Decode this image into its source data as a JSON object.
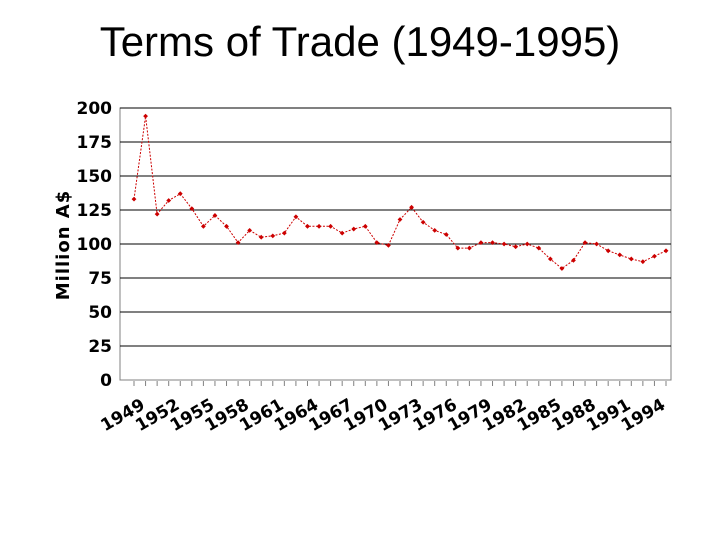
{
  "slide": {
    "title": "Terms of Trade (1949-1995)"
  },
  "chart_data": {
    "type": "line",
    "title": "Terms of Trade (1949-1995)",
    "xlabel": "",
    "ylabel": "Million A$",
    "ylim": [
      0,
      200
    ],
    "yticks": [
      0,
      25,
      50,
      75,
      100,
      125,
      150,
      175,
      200
    ],
    "xticks": [
      "1949",
      "1952",
      "1955",
      "1958",
      "1961",
      "1964",
      "1967",
      "1970",
      "1973",
      "1976",
      "1979",
      "1982",
      "1985",
      "1988",
      "1991",
      "1994"
    ],
    "grid": true,
    "legend": "none",
    "colors": {
      "series": "#cc0000",
      "grid": "#000000",
      "axis": "#808080"
    },
    "series": [
      {
        "x": [
          1949,
          1950,
          1951,
          1952,
          1953,
          1954,
          1955,
          1956,
          1957,
          1958,
          1959,
          1960,
          1961,
          1962,
          1963,
          1964,
          1965,
          1966,
          1967,
          1968,
          1969,
          1970,
          1971,
          1972,
          1973,
          1974,
          1975,
          1976,
          1977,
          1978,
          1979,
          1980,
          1981,
          1982,
          1983,
          1984,
          1985,
          1986,
          1987,
          1988,
          1989,
          1990,
          1991,
          1992,
          1993,
          1994,
          1995
        ],
        "values": [
          133,
          194,
          122,
          132,
          137,
          126,
          113,
          121,
          113,
          101,
          110,
          105,
          106,
          108,
          120,
          113,
          113,
          113,
          108,
          111,
          113,
          101,
          99,
          118,
          127,
          116,
          110,
          107,
          97,
          97,
          101,
          101,
          100,
          98,
          100,
          97,
          89,
          82,
          88,
          101,
          100,
          95,
          92,
          89,
          87,
          91,
          95
        ]
      }
    ]
  }
}
